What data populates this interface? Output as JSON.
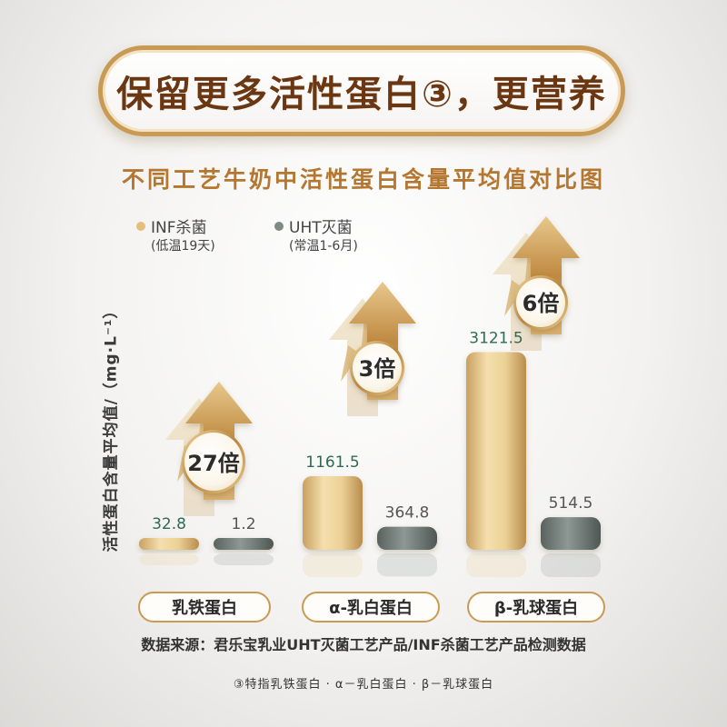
{
  "header": {
    "title": "保留更多活性蛋白③，更营养"
  },
  "chart_data": {
    "type": "bar",
    "title": "不同工艺牛奶中活性蛋白含量平均值对比图",
    "ylabel": "活性蛋白含量平均值/（mg·L⁻¹）",
    "categories": [
      "乳铁蛋白",
      "α-乳白蛋白",
      "β-乳球蛋白"
    ],
    "series": [
      {
        "name": "INF杀菌",
        "note": "(低温19天)",
        "values": [
          32.8,
          1161.5,
          3121.5
        ],
        "color": "#e8c687"
      },
      {
        "name": "UHT灭菌",
        "note": "(常温1-6月)",
        "values": [
          1.2,
          364.8,
          514.5
        ],
        "color": "#7e8a86"
      }
    ],
    "value_labels": {
      "INF杀菌": [
        "32.8",
        "1161.5",
        "3121.5"
      ],
      "UHT灭菌": [
        "1.2",
        "364.8",
        "514.5"
      ]
    },
    "multipliers": [
      "27倍",
      "3倍",
      "6倍"
    ],
    "ylim": [
      0,
      3300
    ],
    "grid": false,
    "legend": "top-left"
  },
  "footer": {
    "source": "数据来源：君乐宝乳业UHT灭菌工艺产品/INF杀菌工艺产品检测数据",
    "footnote": "③特指乳铁蛋白 · α－乳白蛋白 · β－乳球蛋白"
  }
}
